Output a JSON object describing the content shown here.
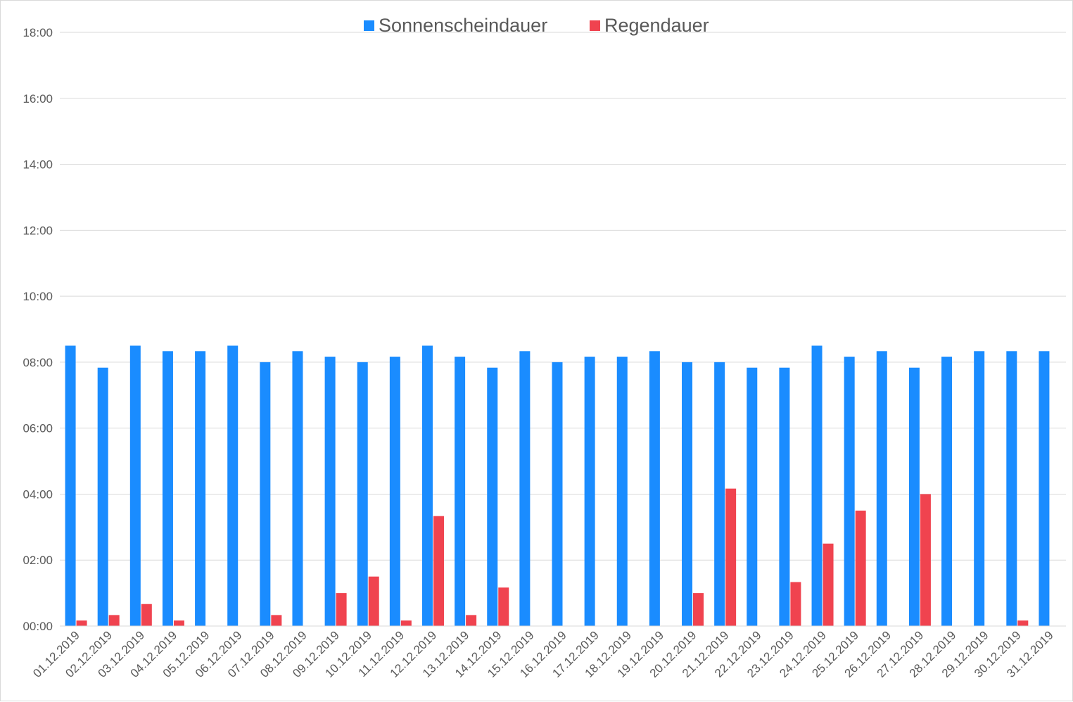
{
  "chart_data": {
    "type": "bar",
    "title": "",
    "xlabel": "",
    "ylabel": "",
    "ylim": [
      "00:00",
      "18:00"
    ],
    "y_ticks": [
      "00:00",
      "02:00",
      "04:00",
      "06:00",
      "08:00",
      "10:00",
      "12:00",
      "14:00",
      "16:00",
      "18:00"
    ],
    "grid": true,
    "legend_position": "top",
    "categories": [
      "01.12.2019",
      "02.12.2019",
      "03.12.2019",
      "04.12.2019",
      "05.12.2019",
      "06.12.2019",
      "07.12.2019",
      "08.12.2019",
      "09.12.2019",
      "10.12.2019",
      "11.12.2019",
      "12.12.2019",
      "13.12.2019",
      "14.12.2019",
      "15.12.2019",
      "16.12.2019",
      "17.12.2019",
      "18.12.2019",
      "19.12.2019",
      "20.12.2019",
      "21.12.2019",
      "22.12.2019",
      "23.12.2019",
      "24.12.2019",
      "25.12.2019",
      "26.12.2019",
      "27.12.2019",
      "28.12.2019",
      "29.12.2019",
      "30.12.2019",
      "31.12.2019"
    ],
    "series": [
      {
        "name": "Sonnenscheindauer",
        "color": "#1a8cff",
        "values": [
          "08:30",
          "07:50",
          "08:30",
          "08:20",
          "08:20",
          "08:30",
          "08:00",
          "08:20",
          "08:10",
          "08:00",
          "08:10",
          "08:30",
          "08:10",
          "07:50",
          "08:20",
          "08:00",
          "08:10",
          "08:10",
          "08:20",
          "08:00",
          "08:00",
          "07:50",
          "07:50",
          "08:30",
          "08:10",
          "08:20",
          "07:50",
          "08:10",
          "08:20",
          "08:20",
          "08:20"
        ]
      },
      {
        "name": "Regendauer",
        "color": "#f0434f",
        "values": [
          "00:10",
          "00:20",
          "00:40",
          "00:10",
          "00:00",
          "00:00",
          "00:20",
          "00:00",
          "01:00",
          "01:30",
          "00:10",
          "03:20",
          "00:20",
          "01:10",
          "00:00",
          "00:00",
          "00:00",
          "00:00",
          "00:00",
          "01:00",
          "04:10",
          "00:00",
          "01:20",
          "02:30",
          "03:30",
          "00:00",
          "04:00",
          "00:00",
          "00:00",
          "00:10",
          "00:00"
        ]
      }
    ]
  }
}
